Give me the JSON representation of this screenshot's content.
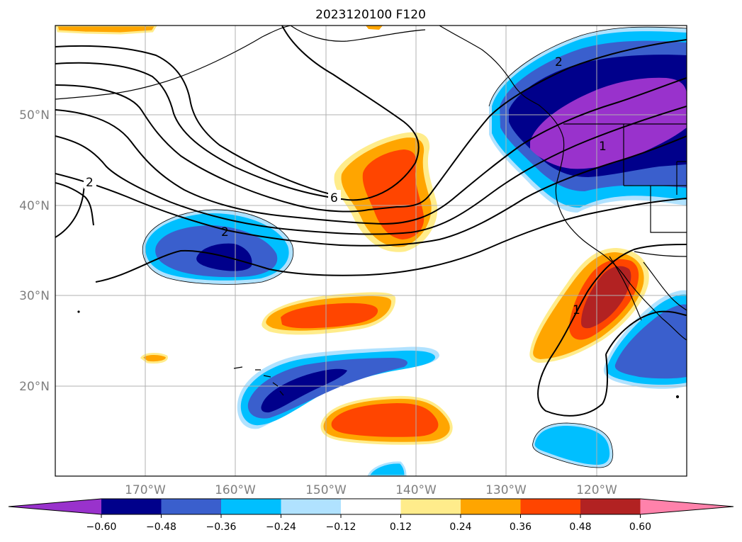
{
  "title": "2023120100 F120",
  "lat_labels": [
    "50°N",
    "40°N",
    "30°N",
    "20°N"
  ],
  "lon_labels": [
    "170°W",
    "160°W",
    "150°W",
    "140°W",
    "130°W",
    "120°W"
  ],
  "colorbar": {
    "ticks": [
      "−0.60",
      "−0.48",
      "−0.36",
      "−0.24",
      "−0.12",
      "0.12",
      "0.24",
      "0.36",
      "0.48",
      "0.60"
    ],
    "colors": [
      "#9932cc",
      "#00008b",
      "#3a5fcd",
      "#00bfff",
      "#b0e2ff",
      "#ffffff",
      "#ffec8b",
      "#ffa500",
      "#ff4500",
      "#b22222",
      "#ff82ab"
    ]
  },
  "contour_labels": [
    "2",
    "6",
    "2",
    "2",
    "1",
    "1"
  ],
  "colors": {
    "contour": "#000000",
    "grid": "#b0b0b0",
    "coast": "#000000"
  }
}
